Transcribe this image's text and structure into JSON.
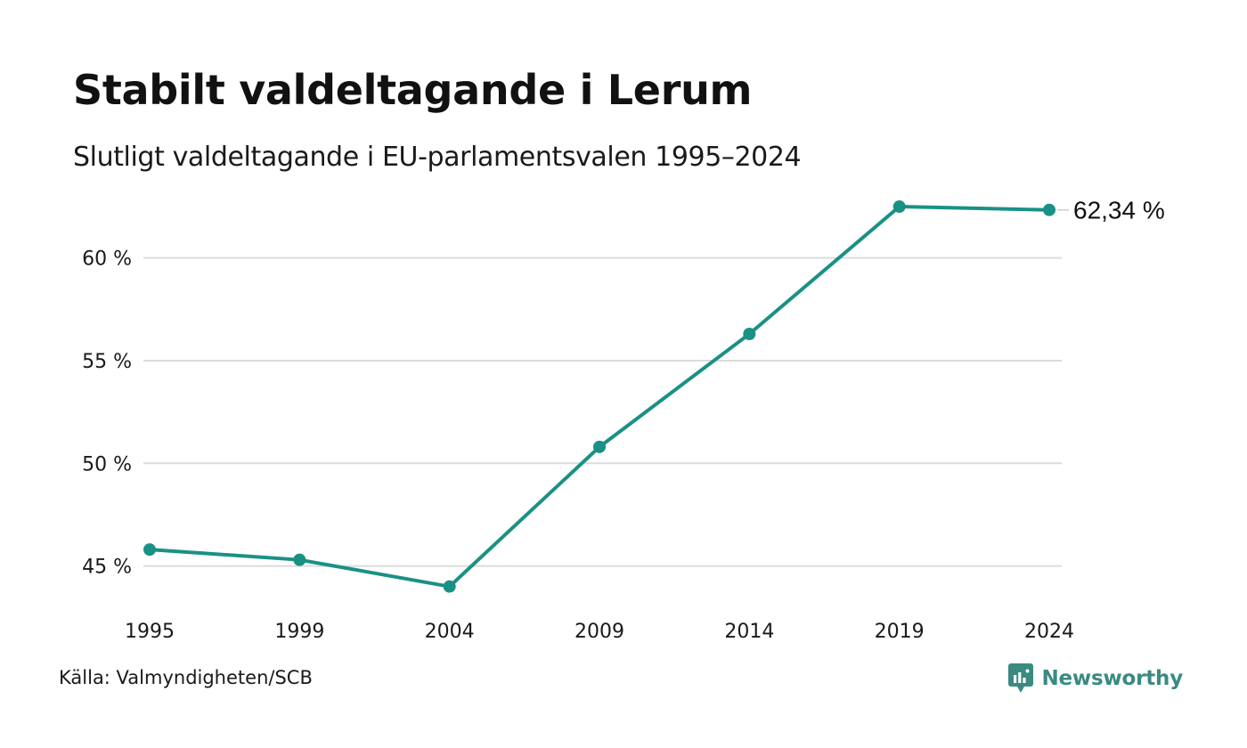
{
  "header": {
    "title": "Stabilt valdeltagande i Lerum",
    "subtitle": "Slutligt valdeltagande i EU-parlamentsvalen 1995–2024"
  },
  "footer": {
    "source": "Källa: Valmyndigheten/SCB",
    "brand": "Newsworthy",
    "brand_icon": "newsworthy-logo-icon"
  },
  "colors": {
    "line": "#1a9185",
    "grid": "#dcdcdc",
    "text": "#111111",
    "brand": "#3a8a82"
  },
  "chart_data": {
    "type": "line",
    "title": "Stabilt valdeltagande i Lerum",
    "subtitle": "Slutligt valdeltagande i EU-parlamentsvalen 1995–2024",
    "x": [
      "1995",
      "1999",
      "2004",
      "2009",
      "2014",
      "2019",
      "2024"
    ],
    "series": [
      {
        "values": [
          45.8,
          45.3,
          44.0,
          50.8,
          56.3,
          62.5,
          62.34
        ]
      }
    ],
    "yticks": [
      45,
      50,
      55,
      60
    ],
    "ytick_labels": [
      "45 %",
      "50 %",
      "55 %",
      "60 %"
    ],
    "ylim": [
      43.4,
      63.0
    ],
    "end_label": "62,34 %",
    "grid": true,
    "legend": "none"
  }
}
